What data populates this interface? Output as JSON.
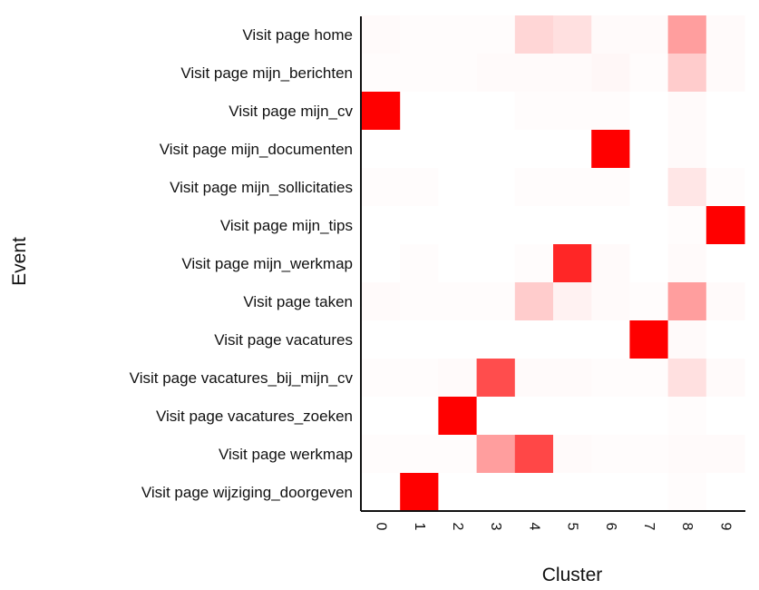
{
  "chart_data": {
    "type": "heatmap",
    "xlabel": "Cluster",
    "ylabel": "Event",
    "x_categories": [
      "0",
      "1",
      "2",
      "3",
      "4",
      "5",
      "6",
      "7",
      "8",
      "9"
    ],
    "y_categories": [
      "Visit page home",
      "Visit page mijn_berichten",
      "Visit page mijn_cv",
      "Visit page mijn_documenten",
      "Visit page mijn_sollicitaties",
      "Visit page mijn_tips",
      "Visit page mijn_werkmap",
      "Visit page taken",
      "Visit page vacatures",
      "Visit page vacatures_bij_mijn_cv",
      "Visit page vacatures_zoeken",
      "Visit page werkmap",
      "Visit page wijziging_doorgeven"
    ],
    "values": [
      [
        0.02,
        0.01,
        0.01,
        0.01,
        0.16,
        0.12,
        0.02,
        0.02,
        0.38,
        0.02
      ],
      [
        0.01,
        0.01,
        0.01,
        0.02,
        0.02,
        0.02,
        0.03,
        0.01,
        0.2,
        0.02
      ],
      [
        1.0,
        0.0,
        0.0,
        0.0,
        0.01,
        0.01,
        0.01,
        0.0,
        0.02,
        0.0
      ],
      [
        0.0,
        0.0,
        0.0,
        0.0,
        0.0,
        0.0,
        1.0,
        0.0,
        0.02,
        0.0
      ],
      [
        0.01,
        0.01,
        0.0,
        0.0,
        0.01,
        0.01,
        0.01,
        0.0,
        0.1,
        0.01
      ],
      [
        0.0,
        0.0,
        0.0,
        0.0,
        0.0,
        0.0,
        0.0,
        0.0,
        0.01,
        1.0
      ],
      [
        0.0,
        0.01,
        0.0,
        0.0,
        0.01,
        0.85,
        0.02,
        0.0,
        0.02,
        0.0
      ],
      [
        0.02,
        0.01,
        0.01,
        0.01,
        0.2,
        0.05,
        0.02,
        0.01,
        0.38,
        0.02
      ],
      [
        0.0,
        0.0,
        0.0,
        0.0,
        0.0,
        0.0,
        0.0,
        1.0,
        0.02,
        0.0
      ],
      [
        0.01,
        0.01,
        0.02,
        0.7,
        0.02,
        0.02,
        0.01,
        0.01,
        0.12,
        0.02
      ],
      [
        0.0,
        0.0,
        1.0,
        0.0,
        0.0,
        0.0,
        0.0,
        0.0,
        0.01,
        0.0
      ],
      [
        0.01,
        0.01,
        0.01,
        0.38,
        0.72,
        0.02,
        0.01,
        0.01,
        0.02,
        0.02
      ],
      [
        0.0,
        1.0,
        0.0,
        0.0,
        0.0,
        0.0,
        0.0,
        0.0,
        0.01,
        0.0
      ]
    ],
    "value_range": [
      0,
      1
    ],
    "colors": {
      "low": "#ffffff",
      "high": "#ff0000"
    },
    "grid": false,
    "legend": "none"
  }
}
